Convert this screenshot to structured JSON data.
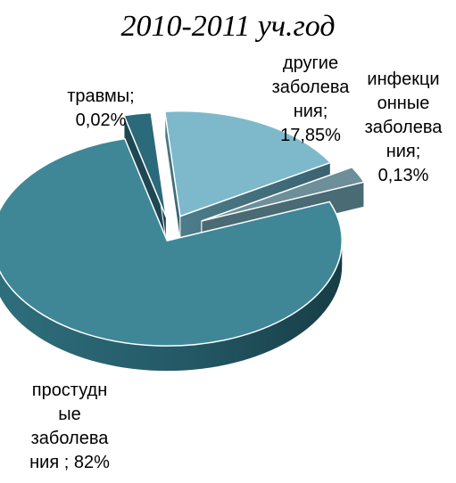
{
  "chart_data": {
    "type": "pie",
    "title": "2010-2011 уч.год",
    "three_d": true,
    "exploded": true,
    "slices": [
      {
        "category": "простудные заболевания",
        "value": 82,
        "label_lines": [
          "простудн",
          "ые",
          "заболева",
          "ния ; 82%"
        ],
        "color": "#3f8797"
      },
      {
        "category": "травмы",
        "value": 0.02,
        "label_lines": [
          "травмы;",
          "0,02%"
        ],
        "color": "#2b6a7a"
      },
      {
        "category": "другие заболевания",
        "value": 17.85,
        "label_lines": [
          "другие",
          "заболева",
          "ния;",
          "17,85%"
        ],
        "color": "#7db9cb"
      },
      {
        "category": "инфекционные заболевания",
        "value": 0.13,
        "label_lines": [
          "инфекци",
          "онные",
          "заболева",
          "ния;",
          "0,13%"
        ],
        "color": "#6c8f9a"
      }
    ]
  }
}
